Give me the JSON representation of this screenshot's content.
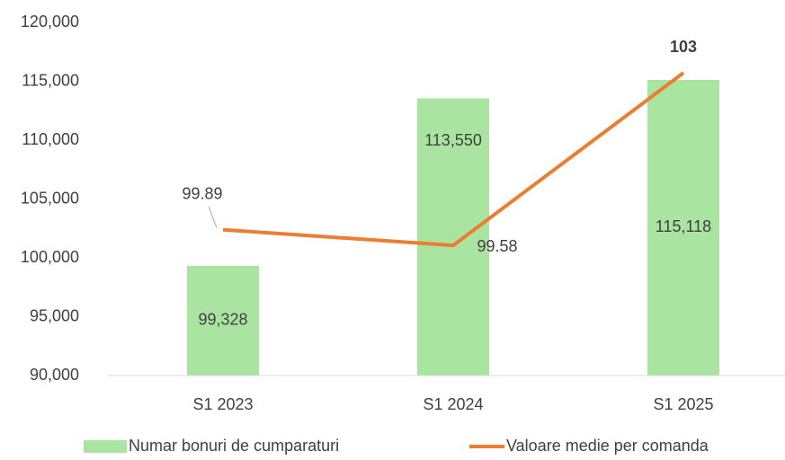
{
  "chart_data": {
    "type": "bar_line",
    "categories": [
      "S1 2023",
      "S1 2024",
      "S1 2025"
    ],
    "series": [
      {
        "name": "Numar bonuri de cumparaturi",
        "type": "bar",
        "color": "#a9e4a0",
        "values": [
          99328,
          113550,
          115118
        ],
        "value_labels": [
          "99,328",
          "113,550",
          "115,118"
        ]
      },
      {
        "name": "Valoare medie per comanda",
        "type": "line",
        "axis": "y2",
        "color": "#ed7d31",
        "label_color": "#c55a11",
        "values": [
          99.89,
          99.58,
          103
        ]
      }
    ],
    "ylim": [
      90000,
      120000
    ],
    "yticks": [
      {
        "value": 90000,
        "label": "90,000"
      },
      {
        "value": 95000,
        "label": "95,000"
      },
      {
        "value": 100000,
        "label": "100,000"
      },
      {
        "value": 105000,
        "label": "105,000"
      },
      {
        "value": 110000,
        "label": "110,000"
      },
      {
        "value": 115000,
        "label": "115,000"
      },
      {
        "value": 120000,
        "label": "120,000"
      }
    ],
    "y2lim": [
      97,
      104
    ],
    "legend": "bottom"
  }
}
